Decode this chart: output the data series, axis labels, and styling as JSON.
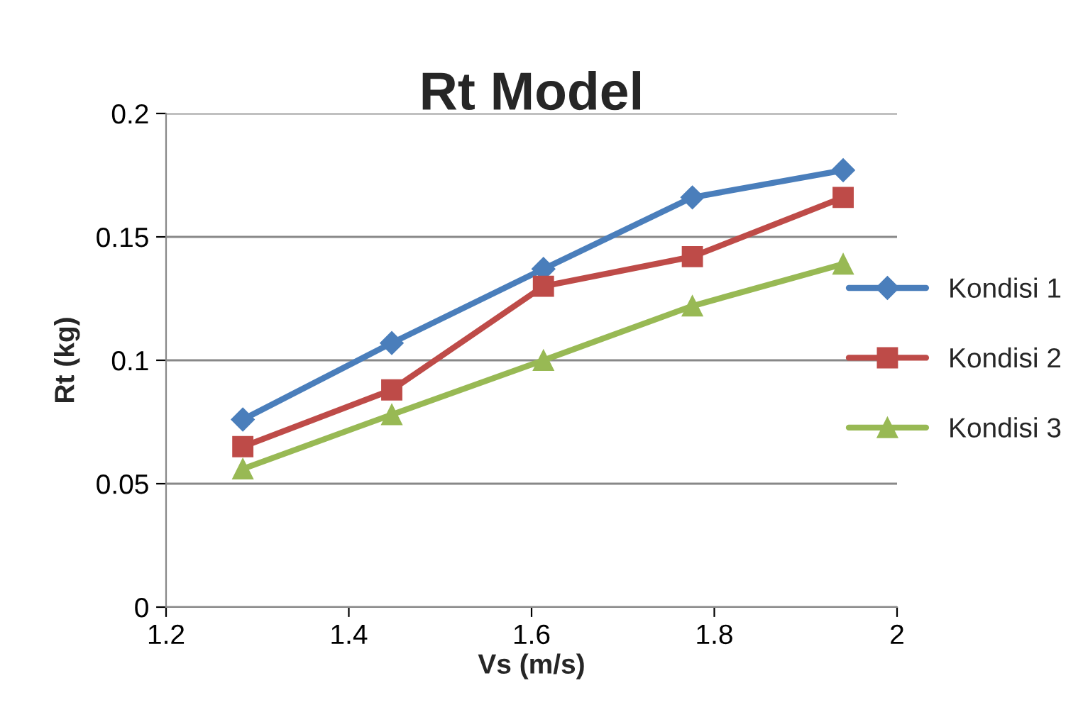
{
  "chart_data": {
    "type": "line",
    "title": "Rt Model",
    "xlabel": "Vs (m/s)",
    "ylabel": "Rt (kg)",
    "x": [
      1.284,
      1.447,
      1.613,
      1.776,
      1.941
    ],
    "series": [
      {
        "name": "Kondisi 1",
        "color": "#4a7ebb",
        "marker": "diamond",
        "values": [
          0.076,
          0.107,
          0.137,
          0.166,
          0.177
        ]
      },
      {
        "name": "Kondisi 2",
        "color": "#be4b48",
        "marker": "square",
        "values": [
          0.065,
          0.088,
          0.13,
          0.142,
          0.166
        ]
      },
      {
        "name": "Kondisi 3",
        "color": "#98b954",
        "marker": "triangle",
        "values": [
          0.056,
          0.078,
          0.1,
          0.122,
          0.139
        ]
      }
    ],
    "xlim": [
      1.2,
      2
    ],
    "xticks": [
      1.2,
      1.4,
      1.6,
      1.8,
      2
    ],
    "ylim": [
      0,
      0.2
    ],
    "yticks": [
      0,
      0.05,
      0.1,
      0.15,
      0.2
    ],
    "grid": "y",
    "legend": "right",
    "line_style": "solid"
  }
}
